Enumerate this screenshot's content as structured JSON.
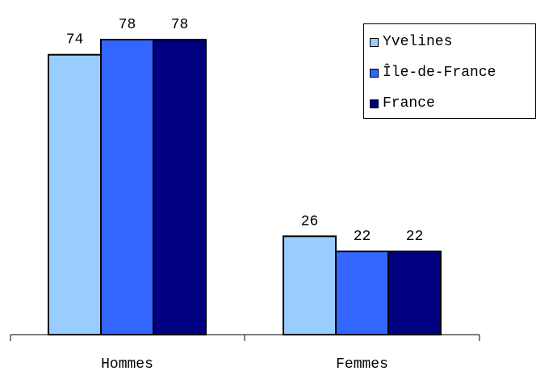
{
  "chart_data": {
    "type": "bar",
    "categories": [
      "Hommes",
      "Femmes"
    ],
    "series": [
      {
        "name": "Yvelines",
        "values": [
          74,
          26
        ],
        "color": "#99ccff"
      },
      {
        "name": "Île-de-France",
        "values": [
          78,
          22
        ],
        "color": "#3366ff"
      },
      {
        "name": "France",
        "values": [
          78,
          22
        ],
        "color": "#000080"
      }
    ],
    "title": "",
    "xlabel": "",
    "ylabel": "",
    "ylim": [
      0,
      78
    ],
    "grid": false,
    "legend_position": "top-right",
    "data_labels": true
  }
}
